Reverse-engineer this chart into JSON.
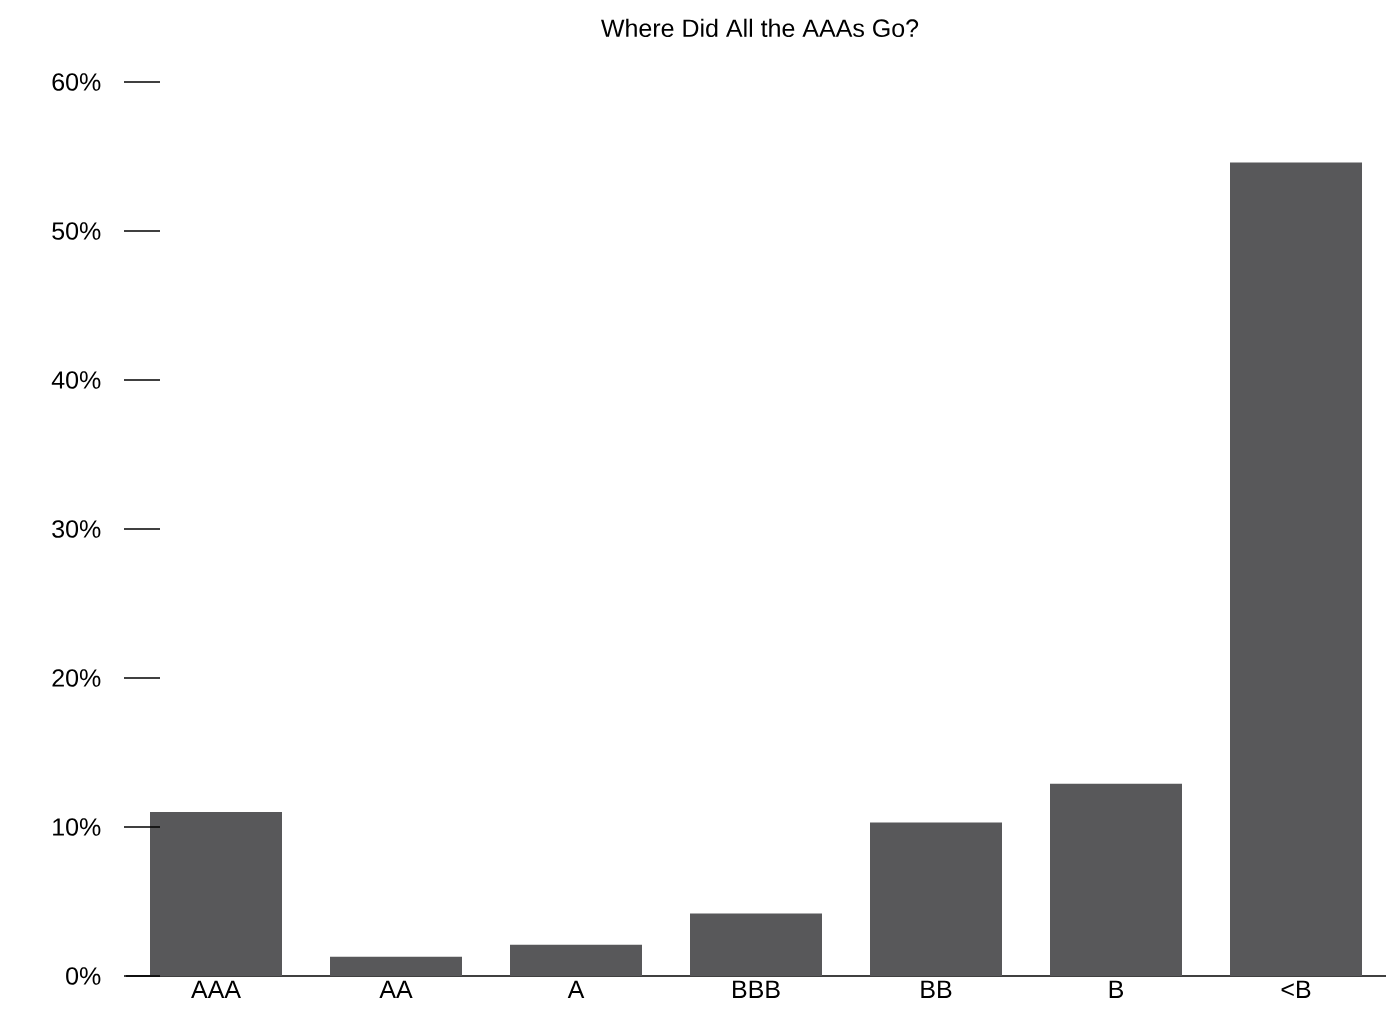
{
  "chart_data": {
    "type": "bar",
    "title": "Where Did All the AAAs Go?",
    "categories": [
      "AAA",
      "AA",
      "A",
      "BBB",
      "BB",
      "B",
      "<B"
    ],
    "values": [
      11.0,
      1.3,
      2.1,
      4.2,
      10.3,
      12.9,
      54.6
    ],
    "color": "#58585a",
    "ylim": [
      0,
      60
    ],
    "yticks": [
      {
        "value": 0,
        "label": "0%"
      },
      {
        "value": 10,
        "label": "10%"
      },
      {
        "value": 20,
        "label": "20%"
      },
      {
        "value": 30,
        "label": "30%"
      },
      {
        "value": 40,
        "label": "40%"
      },
      {
        "value": 50,
        "label": "50%"
      },
      {
        "value": 60,
        "label": "60%"
      }
    ],
    "marker": "none"
  }
}
